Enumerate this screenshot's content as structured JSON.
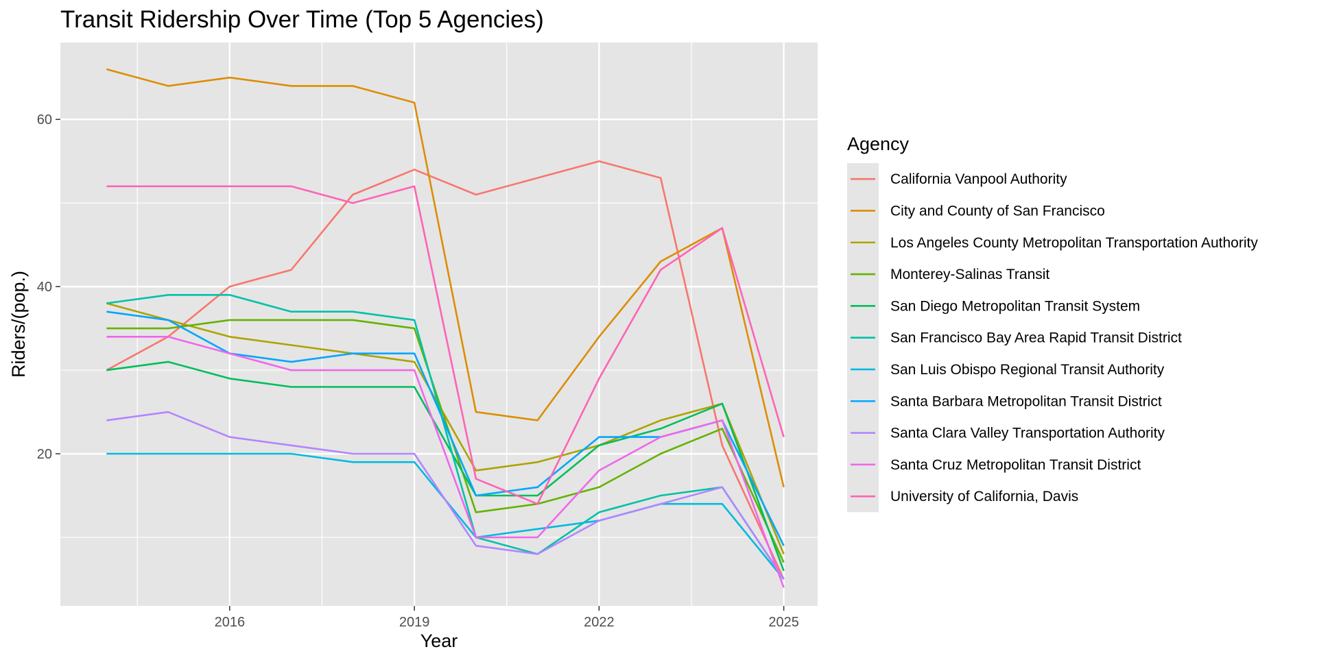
{
  "chart_data": {
    "type": "line",
    "title": "Transit Ridership Over Time (Top 5 Agencies)",
    "xlabel": "Year",
    "ylabel": "Riders/(pop.)",
    "xlim": [
      2013.25,
      2025.55
    ],
    "ylim": [
      1.8,
      69.2
    ],
    "x_ticks": [
      2016,
      2019,
      2022,
      2025
    ],
    "y_ticks": [
      20,
      40,
      60
    ],
    "grid": true,
    "legend_title": "Agency",
    "legend_position": "right",
    "x": [
      2014,
      2015,
      2016,
      2017,
      2018,
      2019,
      2020,
      2021,
      2022,
      2023,
      2024,
      2025
    ],
    "series": [
      {
        "name": "California Vanpool Authority",
        "color": "#F8766D",
        "values": [
          30,
          34,
          40,
          42,
          51,
          54,
          51,
          53,
          55,
          53,
          21,
          5
        ]
      },
      {
        "name": "City and County of San Francisco",
        "color": "#DB8E00",
        "values": [
          66,
          64,
          65,
          64,
          64,
          62,
          25,
          24,
          34,
          43,
          47,
          16
        ]
      },
      {
        "name": "Los Angeles County Metropolitan Transportation Authority",
        "color": "#AEA200",
        "values": [
          38,
          36,
          34,
          33,
          32,
          31,
          18,
          19,
          21,
          24,
          26,
          8
        ]
      },
      {
        "name": "Monterey-Salinas Transit",
        "color": "#64B200",
        "values": [
          35,
          35,
          36,
          36,
          36,
          35,
          13,
          14,
          16,
          20,
          23,
          7
        ]
      },
      {
        "name": "San Diego Metropolitan Transit System",
        "color": "#00BD5C",
        "values": [
          30,
          31,
          29,
          28,
          28,
          28,
          15,
          15,
          21,
          23,
          26,
          6
        ]
      },
      {
        "name": "San Francisco Bay Area Rapid Transit District",
        "color": "#00C1A7",
        "values": [
          38,
          39,
          39,
          37,
          37,
          36,
          10,
          8,
          13,
          15,
          16,
          5
        ]
      },
      {
        "name": "San Luis Obispo Regional Transit Authority",
        "color": "#00BADE",
        "values": [
          20,
          20,
          20,
          20,
          19,
          19,
          10,
          11,
          12,
          14,
          14,
          5
        ]
      },
      {
        "name": "Santa Barbara Metropolitan Transit District",
        "color": "#00A6FF",
        "values": [
          37,
          36,
          32,
          31,
          32,
          32,
          15,
          16,
          22,
          22,
          24,
          9
        ]
      },
      {
        "name": "Santa Clara Valley Transportation Authority",
        "color": "#B385FF",
        "values": [
          24,
          25,
          22,
          21,
          20,
          20,
          9,
          8,
          12,
          14,
          16,
          5
        ]
      },
      {
        "name": "Santa Cruz Metropolitan Transit District",
        "color": "#EF67EB",
        "values": [
          34,
          34,
          32,
          30,
          30,
          30,
          10,
          10,
          18,
          22,
          24,
          4
        ]
      },
      {
        "name": "University of California, Davis",
        "color": "#FF63B6",
        "values": [
          52,
          52,
          52,
          52,
          50,
          52,
          17,
          14,
          29,
          42,
          47,
          22
        ]
      }
    ]
  },
  "colors": {
    "panel_background": "#e5e5e5",
    "grid_major": "#ffffff",
    "tick_label": "#4d4d4d",
    "text": "#000000"
  }
}
